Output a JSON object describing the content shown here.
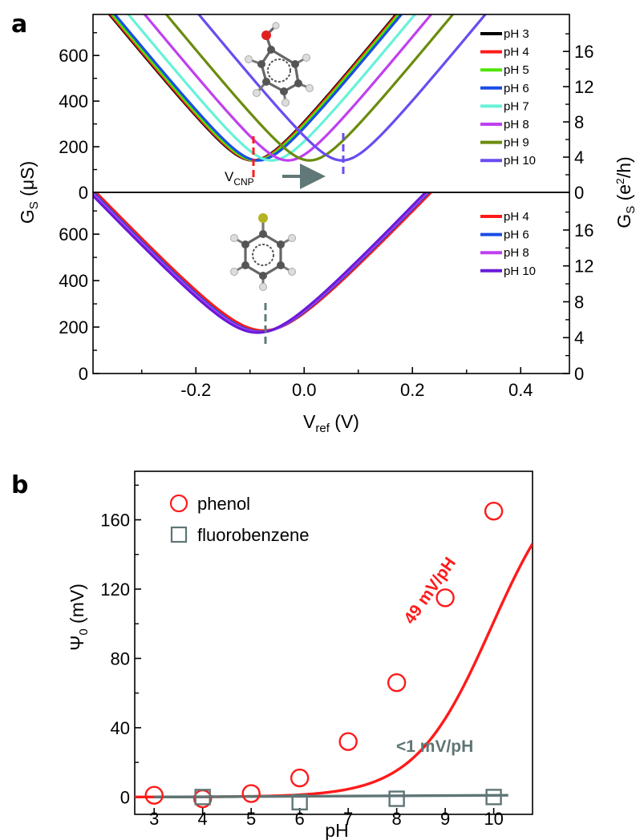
{
  "panel_labels": {
    "a": "a",
    "b": "b"
  },
  "axis_text": {
    "a_left_ylabel": "G",
    "a_left_ylabel_sub": "S",
    "a_left_ylabel_unit": "(μS)",
    "a_right_ylabel": "G",
    "a_right_ylabel_sub": "S",
    "a_right_ylabel_unit_pre": "(e",
    "a_right_ylabel_unit_sup": "2",
    "a_right_ylabel_unit_post": "/h)",
    "a_xlabel": "V",
    "a_xlabel_sub": "ref",
    "a_xlabel_unit": "(V)",
    "b_ylabel": "Ψ",
    "b_ylabel_sub": "0",
    "b_ylabel_unit": "(mV)",
    "b_xlabel": "pH"
  },
  "annotations": {
    "vcnp_label": "V",
    "vcnp_sub": "CNP",
    "phenol_slope": "49 mV/pH",
    "fluoro_slope": "<1 mV/pH"
  },
  "colors": {
    "phenol": "#ff1a1a",
    "fluorobenzene": "#5f7575",
    "vcnp_marker_gray": "#607878",
    "arrow": "#607878"
  },
  "molecules": {
    "top": "phenol-molecule-icon",
    "bottom": "fluorobenzene-molecule-icon"
  },
  "chart_data": [
    {
      "type": "line",
      "panel": "a-top",
      "xlabel": "V_ref (V)",
      "ylabel": "G_S (μS)",
      "y2label": "G_S (e²/h)",
      "xlim": [
        -0.39,
        0.49
      ],
      "ylim": [
        0,
        780
      ],
      "y2lim": [
        0,
        20.2
      ],
      "xticks": [
        "-0.2",
        "0.0",
        "0.2",
        "0.4"
      ],
      "yticks": [
        "0",
        "200",
        "400",
        "600"
      ],
      "y2ticks": [
        "0",
        "4",
        "8",
        "12",
        "16"
      ],
      "series": [
        {
          "name": "pH 3",
          "color": "#000000",
          "vcnp": -0.095,
          "gmin": 140
        },
        {
          "name": "pH 4",
          "color": "#ff1a1a",
          "vcnp": -0.093,
          "gmin": 140
        },
        {
          "name": "pH 5",
          "color": "#4de600",
          "vcnp": -0.09,
          "gmin": 140
        },
        {
          "name": "pH 6",
          "color": "#1a4de6",
          "vcnp": -0.085,
          "gmin": 140
        },
        {
          "name": "pH 7",
          "color": "#66f2d9",
          "vcnp": -0.06,
          "gmin": 140
        },
        {
          "name": "pH 8",
          "color": "#bf40f0",
          "vcnp": -0.03,
          "gmin": 140
        },
        {
          "name": "pH 9",
          "color": "#6b8c0d",
          "vcnp": 0.01,
          "gmin": 140
        },
        {
          "name": "pH 10",
          "color": "#6a4cf0",
          "vcnp": 0.07,
          "gmin": 140
        }
      ]
    },
    {
      "type": "line",
      "panel": "a-bottom",
      "xlabel": "V_ref (V)",
      "ylabel": "G_S (μS)",
      "y2label": "G_S (e²/h)",
      "xlim": [
        -0.39,
        0.49
      ],
      "ylim": [
        0,
        780
      ],
      "y2lim": [
        0,
        20.2
      ],
      "xticks": [
        "-0.2",
        "0.0",
        "0.2",
        "0.4"
      ],
      "yticks": [
        "0",
        "200",
        "400",
        "600"
      ],
      "y2ticks": [
        "0",
        "4",
        "8",
        "12",
        "16"
      ],
      "series": [
        {
          "name": "pH 4",
          "color": "#ff1a1a",
          "vcnp": -0.075,
          "gmin": 185
        },
        {
          "name": "pH 6",
          "color": "#1a4de6",
          "vcnp": -0.08,
          "gmin": 180
        },
        {
          "name": "pH 8",
          "color": "#bf40f0",
          "vcnp": -0.083,
          "gmin": 178
        },
        {
          "name": "pH 10",
          "color": "#6a1ad9",
          "vcnp": -0.086,
          "gmin": 176
        }
      ]
    },
    {
      "type": "scatter",
      "panel": "b",
      "xlabel": "pH",
      "ylabel": "Ψ0 (mV)",
      "xlim": [
        2.6,
        10.8
      ],
      "ylim": [
        -10,
        188
      ],
      "xticks": [
        "3",
        "4",
        "5",
        "6",
        "7",
        "8",
        "9",
        "10"
      ],
      "yticks": [
        "0",
        "40",
        "80",
        "120",
        "160"
      ],
      "legend_position": "top-left",
      "series": [
        {
          "name": "phenol",
          "marker": "circle",
          "color": "#ff1a1a",
          "x": [
            3,
            4,
            5,
            6,
            7,
            8,
            9,
            10
          ],
          "y": [
            1,
            -1,
            2,
            11,
            32,
            66,
            115,
            165
          ]
        },
        {
          "name": "fluorobenzene",
          "marker": "square",
          "color": "#5f7575",
          "x": [
            4,
            6,
            8,
            10
          ],
          "y": [
            0,
            -3,
            -1,
            0
          ]
        }
      ],
      "fits": [
        {
          "series": "phenol",
          "slope_label": "49 mV/pH",
          "pKa": 9.9
        },
        {
          "series": "fluorobenzene",
          "slope_label": "<1 mV/pH"
        }
      ]
    }
  ]
}
